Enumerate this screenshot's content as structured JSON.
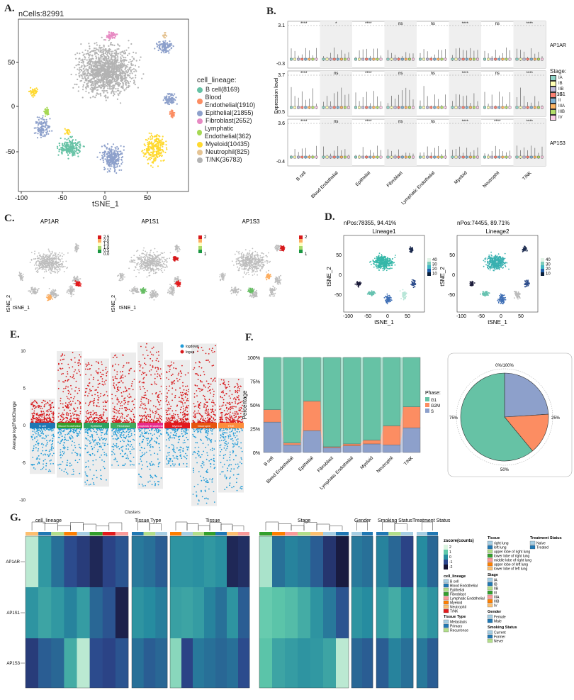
{
  "panels": {
    "a": "A.",
    "b": "B.",
    "c": "C.",
    "d": "D.",
    "e": "E.",
    "f": "F.",
    "g": "G."
  },
  "panelA": {
    "ncells": "nCells:82991",
    "xlabel": "tSNE_1",
    "xticks": [
      "-100",
      "-50",
      "0",
      "50"
    ],
    "yticks": [
      "50",
      "0",
      "-50"
    ],
    "legend_title": "cell_lineage:",
    "legend": [
      {
        "label": "B cell(8169)",
        "color": "#66C2A5"
      },
      {
        "label": "Blood Endothelial(1910)",
        "color": "#FC8D62"
      },
      {
        "label": "Epithelial(21855)",
        "color": "#8DA0CB"
      },
      {
        "label": "Fibroblast(2652)",
        "color": "#E78AC3"
      },
      {
        "label": "Lymphatic Endothelial(362)",
        "color": "#A6D854"
      },
      {
        "label": "Myeloid(10435)",
        "color": "#FFD92F"
      },
      {
        "label": "Neutrophil(825)",
        "color": "#E5C494"
      },
      {
        "label": "T/NK(36783)",
        "color": "#B3B3B3"
      }
    ]
  },
  "panelB": {
    "ylabel": "Expression level",
    "rows": [
      {
        "gene": "AP1AR",
        "ymax": "3.1",
        "ymin": "-0.3",
        "sig": [
          "****",
          "*",
          "****",
          "ns",
          "ns",
          "****",
          "ns",
          "****"
        ]
      },
      {
        "gene": "AP1S1",
        "ymax": "3.7",
        "ymin": "-0.5",
        "sig": [
          "****",
          "ns",
          "****",
          "ns",
          "ns",
          "****",
          "ns",
          "****"
        ]
      },
      {
        "gene": "AP1S3",
        "ymax": "3.6",
        "ymin": "-0.4",
        "sig": [
          "****",
          "ns",
          "****",
          "ns",
          "ns",
          "****",
          "****",
          "****"
        ]
      }
    ],
    "categories": [
      "B cell",
      "Blood Endothelial",
      "Epithelial",
      "Fibroblast",
      "Lymphatic Endothelial",
      "Myeloid",
      "Neutrophil",
      "T/NK"
    ],
    "stage_title": "Stage:",
    "stages": [
      {
        "label": "IA",
        "color": "#8DD3C7"
      },
      {
        "label": "IB",
        "color": "#FFFFB3"
      },
      {
        "label": "IIB",
        "color": "#BEBADA"
      },
      {
        "label": "III",
        "color": "#FB8072"
      },
      {
        "label": "II",
        "color": "#80B1D3"
      },
      {
        "label": "IIIA",
        "color": "#FDB462"
      },
      {
        "label": "IIIB",
        "color": "#B3DE69"
      },
      {
        "label": "IV",
        "color": "#FCCDE5"
      }
    ]
  },
  "panelC": {
    "titles": [
      "AP1AR",
      "AP1S1",
      "AP1S3"
    ],
    "ylabel": "tSNE_2",
    "xlabel": "tSNE_1",
    "scale1": [
      "2.5",
      "2.0",
      "1.5",
      "1.0",
      "0.5",
      "0.0"
    ],
    "scale2": [
      "2",
      "1"
    ],
    "scale3": [
      "2",
      "1"
    ]
  },
  "panelD": {
    "left_head": "nPos:78355, 94.41%",
    "left_title": "Lineage1",
    "right_head": "nPos:74455, 89.71%",
    "right_title": "Lineage2",
    "ylabel": "tSNE_2",
    "xlabel": "tSNE_1",
    "xticks": [
      "-100",
      "-50",
      "0",
      "50"
    ],
    "yticks": [
      "50",
      "0",
      "-50"
    ],
    "scale_left": [
      "40",
      "30",
      "20",
      "10"
    ],
    "scale_right": [
      "40",
      "30",
      "20",
      "10"
    ]
  },
  "panelE": {
    "ylabel": "Average log2FoldChange",
    "legend": [
      {
        "label": "logdown",
        "color": "#1F9BD7"
      },
      {
        "label": "logup",
        "color": "#D7191C"
      }
    ],
    "yticks": [
      "10",
      "5",
      "0",
      "-5",
      "-10"
    ],
    "groups": [
      {
        "label": "B cell",
        "color": "#1F78B4"
      },
      {
        "label": "Blood Endothelial",
        "color": "#33A02C"
      },
      {
        "label": "Epithelial",
        "color": "#2CA25F"
      },
      {
        "label": "Fibroblast",
        "color": "#41AB5D"
      },
      {
        "label": "Lymphatic Endothelial",
        "color": "#E7298A"
      },
      {
        "label": "Myeloid",
        "color": "#E31A1C"
      },
      {
        "label": "Neutrophil",
        "color": "#E6550D"
      },
      {
        "label": "T/NK",
        "color": "#FD8D3C"
      }
    ]
  },
  "chart_data": [
    {
      "type": "area",
      "title": "",
      "ylabel": "Percentage",
      "xlabel": "",
      "yticks": [
        "0%",
        "25%",
        "50%",
        "75%",
        "100%"
      ],
      "categories": [
        "B cell",
        "Blood Endothelial",
        "Epithelial",
        "Fibroblast",
        "Lymphatic Endothelial",
        "Myeloid",
        "Neutrophil",
        "T/NK"
      ],
      "legend_title": "Phase:",
      "series": [
        {
          "name": "S",
          "color": "#8DA0CB",
          "values": [
            32,
            8,
            23,
            5,
            7,
            9,
            8,
            26
          ]
        },
        {
          "name": "G2M",
          "color": "#FC8D62",
          "values": [
            13,
            2,
            31,
            1,
            2,
            4,
            20,
            22
          ]
        },
        {
          "name": "G1",
          "color": "#66C2A5",
          "values": [
            55,
            90,
            46,
            94,
            91,
            87,
            72,
            52
          ]
        }
      ]
    },
    {
      "type": "pie",
      "labels": [
        "G1",
        "G2M",
        "S"
      ],
      "values": [
        61,
        15,
        24
      ],
      "colors": [
        "#66C2A5",
        "#FC8D62",
        "#8DA0CB"
      ],
      "ring_labels": [
        "0%/100%",
        "25%",
        "50%",
        "75%"
      ]
    }
  ],
  "panelG": {
    "clusters": "Clusters",
    "col_groups": [
      "cell_lineage",
      "Tissue Type",
      "Tissue",
      "Stage",
      "Gender",
      "Smoking Status",
      "Treatment Status"
    ],
    "rows": [
      "AP1AR",
      "AP1S1",
      "AP1S3"
    ],
    "zscore_title": "zscore(counts)",
    "zscore_ticks": [
      "2",
      "1",
      "0",
      "-1",
      "-2"
    ],
    "leg_cell_lineage_title": "cell_lineage",
    "leg_cell_lineage": [
      {
        "label": "B cell",
        "color": "#A6CEE3"
      },
      {
        "label": "Blood Endothelial",
        "color": "#1F78B4"
      },
      {
        "label": "Epithelial",
        "color": "#B2DF8A"
      },
      {
        "label": "Fibroblast",
        "color": "#33A02C"
      },
      {
        "label": "Lymphatic Endothelial",
        "color": "#FB9A99"
      },
      {
        "label": "Myeloid",
        "color": "#FF7F00"
      },
      {
        "label": "Neutrophil",
        "color": "#FDBF6F"
      },
      {
        "label": "T/NK",
        "color": "#E31A1C"
      }
    ],
    "leg_tissue_type_title": "Tissue Type",
    "leg_tissue_type": [
      {
        "label": "Metastasis",
        "color": "#A6CEE3"
      },
      {
        "label": "Primary",
        "color": "#1F78B4"
      },
      {
        "label": "Recurrence",
        "color": "#B2DF8A"
      }
    ],
    "leg_tissue_title": "Tissue",
    "leg_tissue": [
      {
        "label": "right lung",
        "color": "#A6CEE3"
      },
      {
        "label": "left lung",
        "color": "#1F78B4"
      },
      {
        "label": "upper lobe of right lung",
        "color": "#B2DF8A"
      },
      {
        "label": "lower lobe of right lung",
        "color": "#33A02C"
      },
      {
        "label": "middle lobe of right lung",
        "color": "#FB9A99"
      },
      {
        "label": "upper lobe of left lung",
        "color": "#FF7F00"
      },
      {
        "label": "lower lobe of left lung",
        "color": "#FDBF6F"
      }
    ],
    "leg_stage_title": "Stage",
    "leg_stage": [
      {
        "label": "IA",
        "color": "#A6CEE3"
      },
      {
        "label": "IB",
        "color": "#1F78B4"
      },
      {
        "label": "IIB",
        "color": "#B2DF8A"
      },
      {
        "label": "III",
        "color": "#33A02C"
      },
      {
        "label": "IIIA",
        "color": "#FB9A99"
      },
      {
        "label": "IIIB",
        "color": "#FF7F00"
      },
      {
        "label": "IV",
        "color": "#FDBF6F"
      }
    ],
    "leg_gender_title": "Gender",
    "leg_gender": [
      {
        "label": "Female",
        "color": "#A6CEE3"
      },
      {
        "label": "Male",
        "color": "#1F78B4"
      }
    ],
    "leg_smoking_title": "Smoking Status",
    "leg_smoking": [
      {
        "label": "Current",
        "color": "#A6CEE3"
      },
      {
        "label": "Former",
        "color": "#1F78B4"
      },
      {
        "label": "Never",
        "color": "#B2DF8A"
      }
    ],
    "leg_treat_title": "Treatment Status",
    "leg_treat": [
      {
        "label": "Naive",
        "color": "#A6CEE3"
      },
      {
        "label": "Treated",
        "color": "#1F78B4"
      }
    ]
  }
}
